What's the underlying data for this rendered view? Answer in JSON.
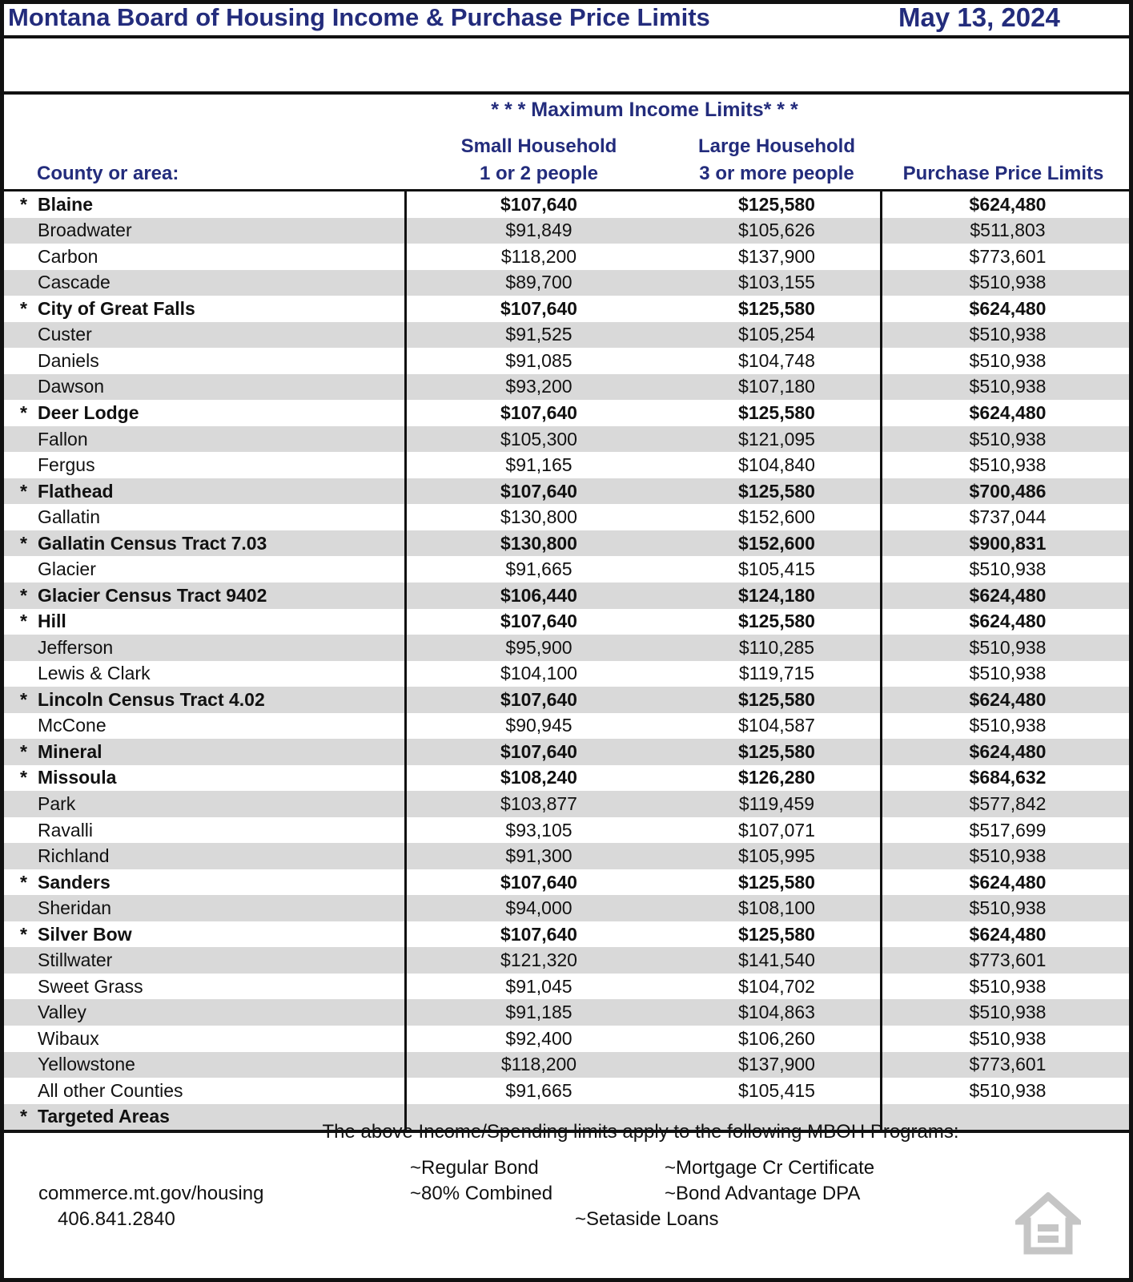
{
  "header": {
    "title": "Montana Board of Housing Income & Purchase Price Limits",
    "date": "May 13, 2024"
  },
  "table": {
    "section_title": "* * * Maximum Income Limits* * *",
    "columns": {
      "county": "County or area:",
      "small_line1": "Small Household",
      "small_line2": "1 or 2 people",
      "large_line1": "Large Household",
      "large_line2": "3 or more people",
      "price": "Purchase Price Limits"
    },
    "rows": [
      {
        "county": "Blaine",
        "targeted": true,
        "small": "$107,640",
        "large": "$125,580",
        "price": "$624,480"
      },
      {
        "county": "Broadwater",
        "targeted": false,
        "small": "$91,849",
        "large": "$105,626",
        "price": "$511,803"
      },
      {
        "county": "Carbon",
        "targeted": false,
        "small": "$118,200",
        "large": "$137,900",
        "price": "$773,601"
      },
      {
        "county": "Cascade",
        "targeted": false,
        "small": "$89,700",
        "large": "$103,155",
        "price": "$510,938"
      },
      {
        "county": "City of Great Falls",
        "targeted": true,
        "small": "$107,640",
        "large": "$125,580",
        "price": "$624,480"
      },
      {
        "county": "Custer",
        "targeted": false,
        "small": "$91,525",
        "large": "$105,254",
        "price": "$510,938"
      },
      {
        "county": "Daniels",
        "targeted": false,
        "small": "$91,085",
        "large": "$104,748",
        "price": "$510,938"
      },
      {
        "county": "Dawson",
        "targeted": false,
        "small": "$93,200",
        "large": "$107,180",
        "price": "$510,938"
      },
      {
        "county": "Deer Lodge",
        "targeted": true,
        "small": "$107,640",
        "large": "$125,580",
        "price": "$624,480"
      },
      {
        "county": "Fallon",
        "targeted": false,
        "small": "$105,300",
        "large": "$121,095",
        "price": "$510,938"
      },
      {
        "county": "Fergus",
        "targeted": false,
        "small": "$91,165",
        "large": "$104,840",
        "price": "$510,938"
      },
      {
        "county": "Flathead",
        "targeted": true,
        "small": "$107,640",
        "large": "$125,580",
        "price": "$700,486"
      },
      {
        "county": "Gallatin",
        "targeted": false,
        "small": "$130,800",
        "large": "$152,600",
        "price": "$737,044"
      },
      {
        "county": "Gallatin Census Tract 7.03",
        "targeted": true,
        "small": "$130,800",
        "large": "$152,600",
        "price": "$900,831"
      },
      {
        "county": "Glacier",
        "targeted": false,
        "small": "$91,665",
        "large": "$105,415",
        "price": "$510,938"
      },
      {
        "county": "Glacier Census Tract 9402",
        "targeted": true,
        "small": "$106,440",
        "large": "$124,180",
        "price": "$624,480"
      },
      {
        "county": "Hill",
        "targeted": true,
        "small": "$107,640",
        "large": "$125,580",
        "price": "$624,480"
      },
      {
        "county": "Jefferson",
        "targeted": false,
        "small": "$95,900",
        "large": "$110,285",
        "price": "$510,938"
      },
      {
        "county": "Lewis & Clark",
        "targeted": false,
        "small": "$104,100",
        "large": "$119,715",
        "price": "$510,938"
      },
      {
        "county": "Lincoln Census Tract 4.02",
        "targeted": true,
        "small": "$107,640",
        "large": "$125,580",
        "price": "$624,480"
      },
      {
        "county": "McCone",
        "targeted": false,
        "small": "$90,945",
        "large": "$104,587",
        "price": "$510,938"
      },
      {
        "county": "Mineral",
        "targeted": true,
        "small": "$107,640",
        "large": "$125,580",
        "price": "$624,480"
      },
      {
        "county": "Missoula",
        "targeted": true,
        "small": "$108,240",
        "large": "$126,280",
        "price": "$684,632"
      },
      {
        "county": "Park",
        "targeted": false,
        "small": "$103,877",
        "large": "$119,459",
        "price": "$577,842"
      },
      {
        "county": "Ravalli",
        "targeted": false,
        "small": "$93,105",
        "large": "$107,071",
        "price": "$517,699"
      },
      {
        "county": "Richland",
        "targeted": false,
        "small": "$91,300",
        "large": "$105,995",
        "price": "$510,938"
      },
      {
        "county": "Sanders",
        "targeted": true,
        "small": "$107,640",
        "large": "$125,580",
        "price": "$624,480"
      },
      {
        "county": "Sheridan",
        "targeted": false,
        "small": "$94,000",
        "large": "$108,100",
        "price": "$510,938"
      },
      {
        "county": "Silver Bow",
        "targeted": true,
        "small": "$107,640",
        "large": "$125,580",
        "price": "$624,480"
      },
      {
        "county": "Stillwater",
        "targeted": false,
        "small": "$121,320",
        "large": "$141,540",
        "price": "$773,601"
      },
      {
        "county": "Sweet Grass",
        "targeted": false,
        "small": "$91,045",
        "large": "$104,702",
        "price": "$510,938"
      },
      {
        "county": "Valley",
        "targeted": false,
        "small": "$91,185",
        "large": "$104,863",
        "price": "$510,938"
      },
      {
        "county": "Wibaux",
        "targeted": false,
        "small": "$92,400",
        "large": "$106,260",
        "price": "$510,938"
      },
      {
        "county": "Yellowstone",
        "targeted": false,
        "small": "$118,200",
        "large": "$137,900",
        "price": "$773,601"
      },
      {
        "county": "All other Counties",
        "targeted": false,
        "small": "$91,665",
        "large": "$105,415",
        "price": "$510,938"
      },
      {
        "county": "Targeted Areas",
        "targeted": true,
        "small": "",
        "large": "",
        "price": ""
      }
    ]
  },
  "footer": {
    "intro": "The above Income/Spending limits apply to the following MBOH Programs:",
    "programs": {
      "regular": "~Regular Bond",
      "mcc": "~Mortgage Cr Certificate",
      "combined": "~80% Combined",
      "dpa": "~Bond Advantage DPA",
      "setaside": "~Setaside Loans"
    },
    "website": "commerce.mt.gov/housing",
    "phone": "406.841.2840"
  },
  "colors": {
    "navy": "#232c7c",
    "stripe": "#d9d9d9",
    "border": "#111111",
    "icon_gray": "#c5c5c5"
  }
}
